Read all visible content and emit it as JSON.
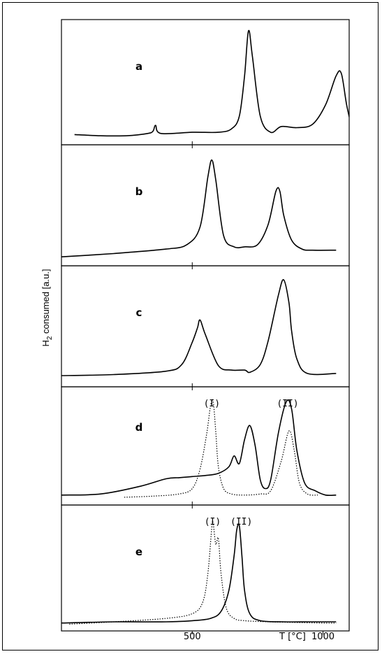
{
  "chart_data": {
    "type": "line",
    "ylabel_prefix": "H",
    "ylabel_sub": "2",
    "ylabel_rest": " consumed [a.u.]",
    "xlabel": "T [°C]",
    "xticks": [
      500,
      1000
    ],
    "xlim": [
      0,
      1100
    ],
    "grid": false,
    "panels": [
      {
        "label": "a",
        "ylim": [
          0,
          1
        ],
        "peak_labels": [],
        "series": [
          {
            "style": "solid",
            "x": [
              50,
              150,
              250,
              330,
              350,
              360,
              380,
              500,
              600,
              650,
              680,
              700,
              715,
              730,
              760,
              800,
              840,
              900,
              960,
              1010,
              1050,
              1070,
              1090,
              1110
            ],
            "y": [
              0.04,
              0.03,
              0.03,
              0.05,
              0.07,
              0.12,
              0.05,
              0.06,
              0.06,
              0.09,
              0.2,
              0.55,
              0.94,
              0.72,
              0.2,
              0.06,
              0.11,
              0.1,
              0.13,
              0.3,
              0.55,
              0.57,
              0.3,
              0.1
            ]
          }
        ]
      },
      {
        "label": "b",
        "ylim": [
          0,
          1
        ],
        "peak_labels": [],
        "series": [
          {
            "style": "solid",
            "x": [
              0,
              200,
              400,
              480,
              530,
              560,
              575,
              590,
              620,
              660,
              700,
              750,
              790,
              820,
              835,
              850,
              880,
              920,
              960,
              1050
            ],
            "y": [
              0.03,
              0.06,
              0.1,
              0.14,
              0.3,
              0.75,
              0.9,
              0.72,
              0.22,
              0.12,
              0.12,
              0.14,
              0.32,
              0.62,
              0.62,
              0.4,
              0.18,
              0.1,
              0.09,
              0.09
            ]
          }
        ]
      },
      {
        "label": "c",
        "ylim": [
          0,
          1
        ],
        "peak_labels": [],
        "series": [
          {
            "style": "solid",
            "x": [
              0,
              200,
              400,
              460,
              500,
              520,
              530,
              550,
              600,
              650,
              700,
              720,
              760,
              790,
              830,
              850,
              870,
              880,
              900,
              940,
              1050
            ],
            "y": [
              0.05,
              0.06,
              0.09,
              0.15,
              0.35,
              0.48,
              0.55,
              0.42,
              0.14,
              0.1,
              0.1,
              0.08,
              0.15,
              0.36,
              0.78,
              0.91,
              0.7,
              0.45,
              0.2,
              0.07,
              0.07
            ]
          }
        ]
      },
      {
        "label": "d",
        "ylim": [
          0,
          1
        ],
        "peak_labels": [
          {
            "text": "(I)",
            "x": 575
          },
          {
            "text": "(II)",
            "x": 865
          }
        ],
        "series": [
          {
            "style": "solid",
            "x": [
              0,
              150,
              300,
              400,
              450,
              500,
              550,
              600,
              640,
              660,
              680,
              700,
              720,
              740,
              760,
              780,
              800,
              830,
              860,
              880,
              900,
              930,
              970,
              1010,
              1050
            ],
            "y": [
              0.04,
              0.05,
              0.12,
              0.19,
              0.2,
              0.21,
              0.22,
              0.24,
              0.3,
              0.4,
              0.33,
              0.55,
              0.68,
              0.5,
              0.18,
              0.1,
              0.18,
              0.62,
              0.9,
              0.83,
              0.45,
              0.15,
              0.08,
              0.04,
              0.04
            ]
          },
          {
            "style": "dotted",
            "x": [
              240,
              350,
              450,
              500,
              530,
              555,
              570,
              580,
              590,
              600,
              620,
              650,
              700,
              760,
              800,
              840,
              870,
              890,
              910,
              940,
              980
            ],
            "y": [
              0.02,
              0.03,
              0.05,
              0.1,
              0.28,
              0.6,
              0.86,
              0.9,
              0.62,
              0.3,
              0.1,
              0.05,
              0.04,
              0.05,
              0.08,
              0.35,
              0.63,
              0.45,
              0.15,
              0.05,
              0.04
            ]
          }
        ]
      },
      {
        "label": "e",
        "ylim": [
          0,
          1
        ],
        "peak_labels": [
          {
            "text": "(I)",
            "x": 578
          },
          {
            "text": "(II)",
            "x": 688
          }
        ],
        "series": [
          {
            "style": "solid",
            "x": [
              0,
              200,
              400,
              500,
              570,
              610,
              640,
              660,
              670,
              680,
              690,
              700,
              720,
              760,
              850,
              950,
              1050
            ],
            "y": [
              0.02,
              0.03,
              0.03,
              0.04,
              0.06,
              0.12,
              0.3,
              0.6,
              0.82,
              0.86,
              0.6,
              0.3,
              0.1,
              0.04,
              0.03,
              0.03,
              0.03
            ]
          },
          {
            "style": "dotted",
            "x": [
              30,
              200,
              400,
              500,
              540,
              560,
              575,
              580,
              590,
              600,
              610,
              630,
              660,
              700,
              800,
              1000,
              1050
            ],
            "y": [
              0.01,
              0.03,
              0.06,
              0.1,
              0.2,
              0.45,
              0.85,
              0.88,
              0.7,
              0.75,
              0.45,
              0.15,
              0.06,
              0.04,
              0.03,
              0.02,
              0.02
            ]
          }
        ]
      }
    ]
  }
}
